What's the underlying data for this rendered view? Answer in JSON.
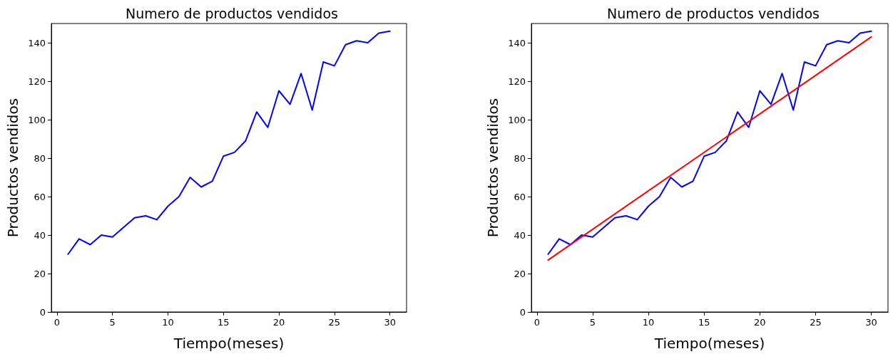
{
  "chart_data": [
    {
      "type": "line",
      "title": "Numero de productos vendidos",
      "xlabel": "Tiempo(meses)",
      "ylabel": "Productos vendidos",
      "xlim": [
        -0.5,
        31.5
      ],
      "xticks": [
        0,
        5,
        10,
        15,
        20,
        25,
        30
      ],
      "ylim": [
        0,
        150
      ],
      "yticks": [
        0,
        20,
        40,
        60,
        80,
        100,
        120,
        140
      ],
      "x": [
        1,
        2,
        3,
        4,
        5,
        6,
        7,
        8,
        9,
        10,
        11,
        12,
        13,
        14,
        15,
        16,
        17,
        18,
        19,
        20,
        21,
        22,
        23,
        24,
        25,
        26,
        27,
        28,
        29,
        30
      ],
      "series": [
        {
          "color": "#0000ff",
          "values": [
            30,
            38,
            35,
            40,
            39,
            44,
            49,
            50,
            48,
            55,
            60,
            70,
            65,
            68,
            81,
            83,
            89,
            104,
            96,
            115,
            108,
            124,
            105,
            130,
            128,
            139,
            141,
            140,
            145,
            146
          ]
        }
      ]
    },
    {
      "type": "line",
      "title": "Numero de productos vendidos",
      "xlabel": "Tiempo(meses)",
      "ylabel": "Productos vendidos",
      "xlim": [
        -0.5,
        31.5
      ],
      "xticks": [
        0,
        5,
        10,
        15,
        20,
        25,
        30
      ],
      "ylim": [
        0,
        150
      ],
      "yticks": [
        0,
        20,
        40,
        60,
        80,
        100,
        120,
        140
      ],
      "x": [
        1,
        2,
        3,
        4,
        5,
        6,
        7,
        8,
        9,
        10,
        11,
        12,
        13,
        14,
        15,
        16,
        17,
        18,
        19,
        20,
        21,
        22,
        23,
        24,
        25,
        26,
        27,
        28,
        29,
        30
      ],
      "series": [
        {
          "color": "#0000ff",
          "values": [
            30,
            38,
            35,
            40,
            39,
            44,
            49,
            50,
            48,
            55,
            60,
            70,
            65,
            68,
            81,
            83,
            89,
            104,
            96,
            115,
            108,
            124,
            105,
            130,
            128,
            139,
            141,
            140,
            145,
            146
          ]
        },
        {
          "type": "line",
          "color": "#ff0000",
          "x": [
            1,
            30
          ],
          "values": [
            27,
            143
          ]
        }
      ]
    }
  ]
}
